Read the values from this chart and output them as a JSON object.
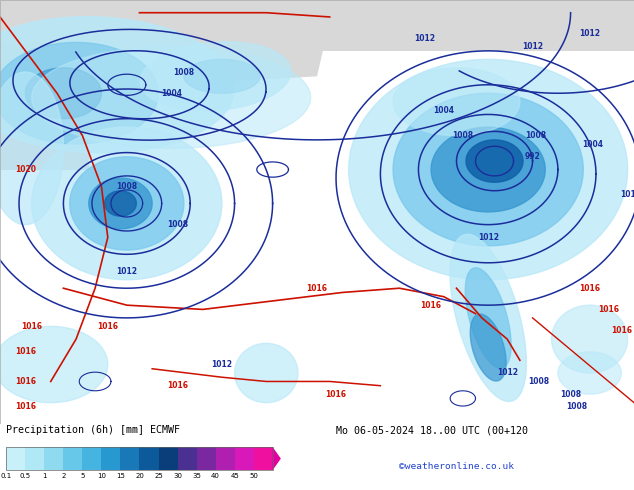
{
  "title_left": "Precipitation (6h) [mm] ECMWF",
  "title_right": "Mo 06-05-2024 18..00 UTC (00+120",
  "subtitle_right": "©weatheronline.co.uk",
  "colorbar_labels": [
    "0.1",
    "0.5",
    "1",
    "2",
    "5",
    "10",
    "15",
    "20",
    "25",
    "30",
    "35",
    "40",
    "45",
    "50"
  ],
  "colorbar_colors": [
    "#c8f0f8",
    "#b0e8f5",
    "#90daf0",
    "#68c8ea",
    "#46b4e0",
    "#2898d0",
    "#1878b8",
    "#0c5a9a",
    "#093e7a",
    "#4a3090",
    "#7a28a0",
    "#b020b0",
    "#d818b8",
    "#f010a0"
  ],
  "land_color": "#c8e8a0",
  "sea_color": "#e8e8e8",
  "prec_light": "#b8e8f8",
  "prec_med": "#78c8ec",
  "prec_dark": "#3898d0",
  "prec_vdark": "#1060a8",
  "blue_contour": "#1a2d9a",
  "red_contour": "#cc1100",
  "fig_bg": "#ffffff",
  "fig_width": 6.34,
  "fig_height": 4.9,
  "dpi": 100
}
